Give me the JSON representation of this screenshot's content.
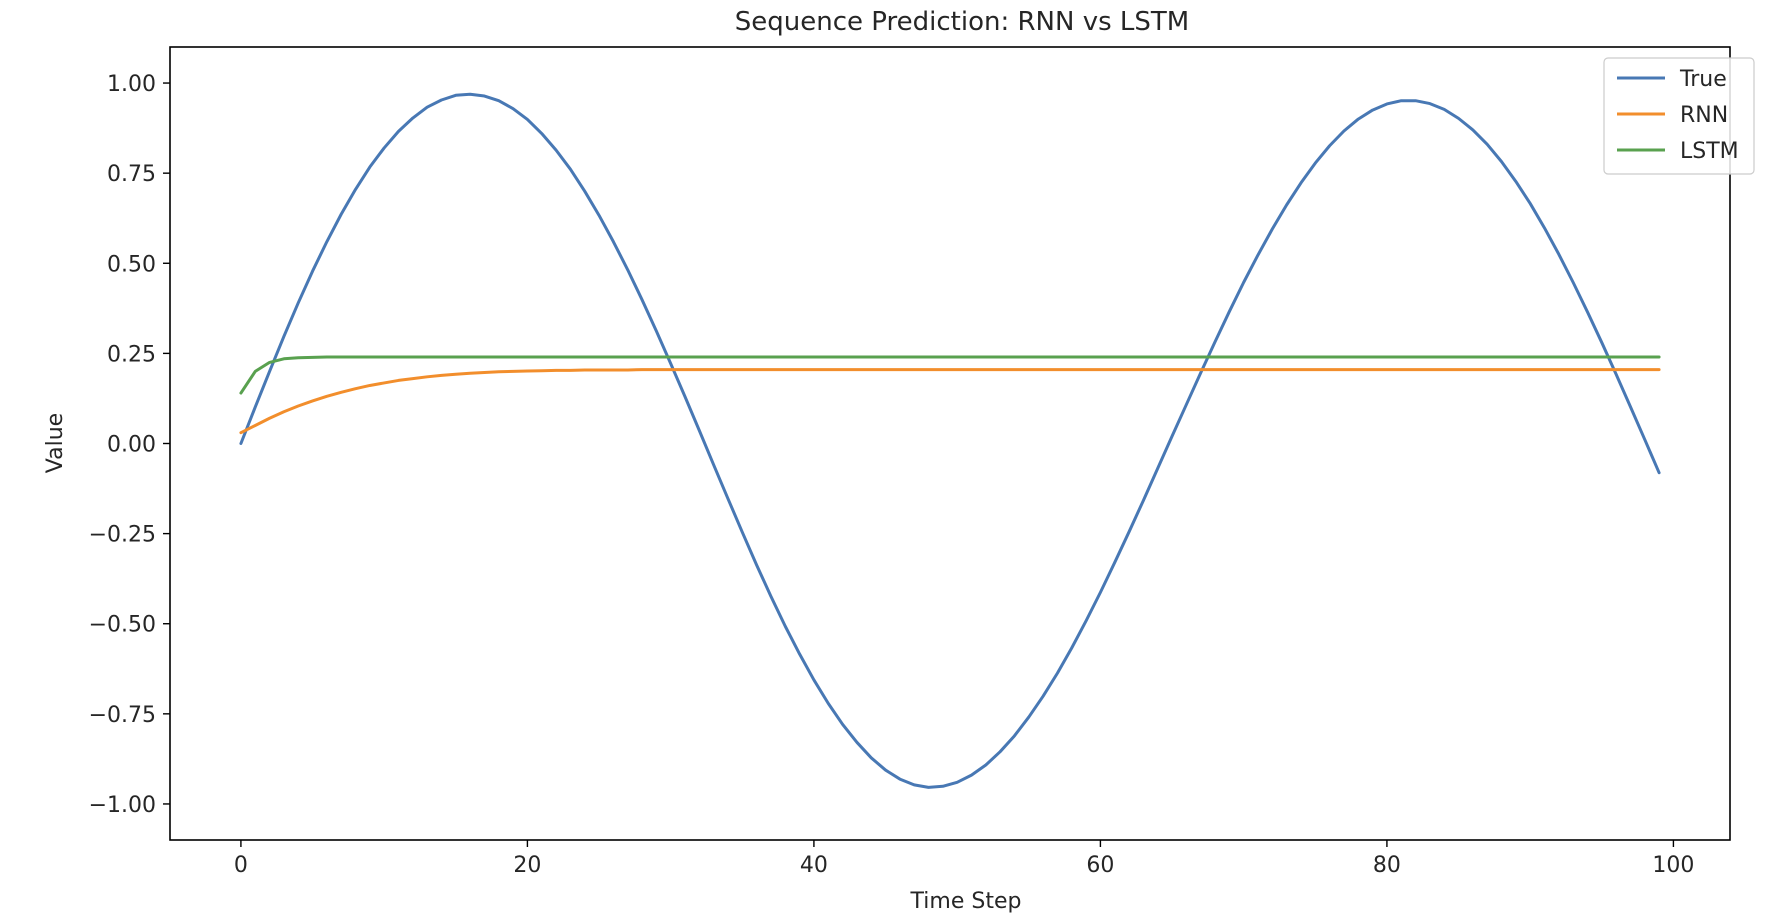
{
  "chart_data": {
    "type": "line",
    "title": "Sequence Prediction: RNN vs LSTM",
    "xlabel": "Time Step",
    "ylabel": "Value",
    "xlim": [
      -4.95,
      103.95
    ],
    "ylim": [
      -1.1,
      1.1
    ],
    "xticks": [
      0,
      20,
      40,
      60,
      80,
      100
    ],
    "xtick_labels": [
      "0",
      "20",
      "40",
      "60",
      "80",
      "100"
    ],
    "yticks": [
      1.0,
      0.75,
      0.5,
      0.25,
      0.0,
      -0.25,
      -0.5,
      -0.75,
      -1.0
    ],
    "ytick_labels": [
      "1.00",
      "0.75",
      "0.50",
      "0.25",
      "0.00",
      "−0.25",
      "−0.50",
      "−0.75",
      "−1.00"
    ],
    "grid": false,
    "legend_position": "top-right",
    "x": [
      0,
      1,
      2,
      3,
      4,
      5,
      6,
      7,
      8,
      9,
      10,
      11,
      12,
      13,
      14,
      15,
      16,
      17,
      18,
      19,
      20,
      21,
      22,
      23,
      24,
      25,
      26,
      27,
      28,
      29,
      30,
      31,
      32,
      33,
      34,
      35,
      36,
      37,
      38,
      39,
      40,
      41,
      42,
      43,
      44,
      45,
      46,
      47,
      48,
      49,
      50,
      51,
      52,
      53,
      54,
      55,
      56,
      57,
      58,
      59,
      60,
      61,
      62,
      63,
      64,
      65,
      66,
      67,
      68,
      69,
      70,
      71,
      72,
      73,
      74,
      75,
      76,
      77,
      78,
      79,
      80,
      81,
      82,
      83,
      84,
      85,
      86,
      87,
      88,
      89,
      90,
      91,
      92,
      93,
      94,
      95,
      96,
      97,
      98,
      99
    ],
    "series": [
      {
        "name": "True",
        "color": "#4878b4",
        "values": [
          0.0,
          0.101,
          0.2,
          0.297,
          0.39,
          0.478,
          0.56,
          0.636,
          0.705,
          0.767,
          0.82,
          0.866,
          0.903,
          0.933,
          0.953,
          0.966,
          0.969,
          0.964,
          0.951,
          0.929,
          0.899,
          0.86,
          0.814,
          0.761,
          0.7,
          0.633,
          0.56,
          0.482,
          0.399,
          0.312,
          0.222,
          0.13,
          0.036,
          -0.059,
          -0.153,
          -0.246,
          -0.337,
          -0.424,
          -0.507,
          -0.584,
          -0.656,
          -0.721,
          -0.779,
          -0.829,
          -0.872,
          -0.906,
          -0.931,
          -0.947,
          -0.954,
          -0.951,
          -0.94,
          -0.92,
          -0.892,
          -0.855,
          -0.811,
          -0.759,
          -0.701,
          -0.637,
          -0.567,
          -0.492,
          -0.413,
          -0.33,
          -0.245,
          -0.158,
          -0.069,
          0.02,
          0.108,
          0.196,
          0.282,
          0.366,
          0.447,
          0.523,
          0.595,
          0.662,
          0.723,
          0.778,
          0.826,
          0.867,
          0.9,
          0.925,
          0.942,
          0.951,
          0.951,
          0.943,
          0.927,
          0.902,
          0.87,
          0.83,
          0.782,
          0.727,
          0.666,
          0.598,
          0.525,
          0.447,
          0.365,
          0.28,
          0.192,
          0.102,
          0.011,
          -0.081
        ]
      },
      {
        "name": "RNN",
        "color": "#f28e2c",
        "values": [
          0.03,
          0.05,
          0.07,
          0.088,
          0.104,
          0.118,
          0.131,
          0.142,
          0.152,
          0.161,
          0.168,
          0.175,
          0.18,
          0.185,
          0.189,
          0.192,
          0.195,
          0.197,
          0.199,
          0.2,
          0.201,
          0.202,
          0.203,
          0.203,
          0.204,
          0.204,
          0.204,
          0.204,
          0.205,
          0.205,
          0.205,
          0.205,
          0.205,
          0.205,
          0.205,
          0.205,
          0.205,
          0.205,
          0.205,
          0.205,
          0.205,
          0.205,
          0.205,
          0.205,
          0.205,
          0.205,
          0.205,
          0.205,
          0.205,
          0.205,
          0.205,
          0.205,
          0.205,
          0.205,
          0.205,
          0.205,
          0.205,
          0.205,
          0.205,
          0.205,
          0.205,
          0.205,
          0.205,
          0.205,
          0.205,
          0.205,
          0.205,
          0.205,
          0.205,
          0.205,
          0.205,
          0.205,
          0.205,
          0.205,
          0.205,
          0.205,
          0.205,
          0.205,
          0.205,
          0.205,
          0.205,
          0.205,
          0.205,
          0.205,
          0.205,
          0.205,
          0.205,
          0.205,
          0.205,
          0.205,
          0.205,
          0.205,
          0.205,
          0.205,
          0.205,
          0.205,
          0.205,
          0.205,
          0.205,
          0.205
        ]
      },
      {
        "name": "LSTM",
        "color": "#59a14f",
        "values": [
          0.14,
          0.2,
          0.225,
          0.235,
          0.238,
          0.239,
          0.24,
          0.24,
          0.24,
          0.24,
          0.24,
          0.24,
          0.24,
          0.24,
          0.24,
          0.24,
          0.24,
          0.24,
          0.24,
          0.24,
          0.24,
          0.24,
          0.24,
          0.24,
          0.24,
          0.24,
          0.24,
          0.24,
          0.24,
          0.24,
          0.24,
          0.24,
          0.24,
          0.24,
          0.24,
          0.24,
          0.24,
          0.24,
          0.24,
          0.24,
          0.24,
          0.24,
          0.24,
          0.24,
          0.24,
          0.24,
          0.24,
          0.24,
          0.24,
          0.24,
          0.24,
          0.24,
          0.24,
          0.24,
          0.24,
          0.24,
          0.24,
          0.24,
          0.24,
          0.24,
          0.24,
          0.24,
          0.24,
          0.24,
          0.24,
          0.24,
          0.24,
          0.24,
          0.24,
          0.24,
          0.24,
          0.24,
          0.24,
          0.24,
          0.24,
          0.24,
          0.24,
          0.24,
          0.24,
          0.24,
          0.24,
          0.24,
          0.24,
          0.24,
          0.24,
          0.24,
          0.24,
          0.24,
          0.24,
          0.24,
          0.24,
          0.24,
          0.24,
          0.24,
          0.24,
          0.24,
          0.24,
          0.24,
          0.24,
          0.24
        ]
      }
    ]
  }
}
